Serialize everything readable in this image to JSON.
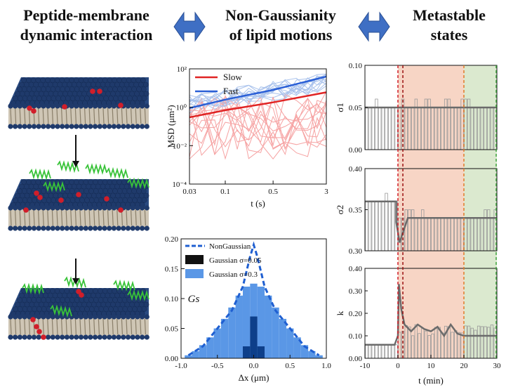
{
  "headers": {
    "col1": [
      "Peptide-membrane",
      "dynamic interaction"
    ],
    "col2": [
      "Non-Gaussianity",
      "of lipid motions"
    ],
    "col3": [
      "Metastable",
      "states"
    ]
  },
  "colors": {
    "arrow_blue": "#3f6fc4",
    "lipid_head": "#1f3a6b",
    "lipid_red": "#d11e2a",
    "peptide_green": "#39c339",
    "slow": "#e02424",
    "fast": "#2a5fd6",
    "slow_light": "#f6a3a3",
    "fast_light": "#a9c2ec",
    "gauss_dark": "#0d3f8a",
    "gauss_light": "#5a97e6",
    "nongauss": "#1f5fd1",
    "region_red": "#f7d5c5",
    "region_green": "#dbe9cf"
  },
  "msd_chart": {
    "type": "line",
    "ylabel": "MSD (μm²)",
    "xlabel": "t (s)",
    "x_ticks": [
      "0.03",
      "0.1",
      "0.5",
      "3"
    ],
    "y_ticks": [
      "10²",
      "10⁰",
      "10⁻²",
      "10⁻⁴"
    ],
    "legend": [
      {
        "name": "Slow"
      },
      {
        "name": "Fast"
      }
    ]
  },
  "gs_chart": {
    "type": "bar",
    "ylabel": "Gs",
    "xlabel": "Δx (μm)",
    "x_ticks": [
      "-1.0",
      "-0.5",
      "0.0",
      "0.5",
      "1.0"
    ],
    "y_ticks": [
      "0.00",
      "0.05",
      "0.10",
      "0.15",
      "0.20"
    ],
    "legend": [
      {
        "name": "NonGaussian"
      },
      {
        "name": "Gaussian σ=0.05"
      },
      {
        "name": "Gaussian σ=0.3"
      }
    ]
  },
  "state_chart": {
    "type": "line",
    "xlabel": "t (min)",
    "x_ticks": [
      "-10",
      "0",
      "10",
      "20",
      "30"
    ],
    "panels": [
      {
        "ylabel": "σ1",
        "ticks": [
          "0.10",
          "0.05",
          "0.00"
        ]
      },
      {
        "ylabel": "σ2",
        "ticks": [
          "0.40",
          "0.35",
          "0.30"
        ]
      },
      {
        "ylabel": "k",
        "ticks": [
          "0.40",
          "0.30",
          "0.20",
          "0.10",
          "0.00"
        ]
      }
    ]
  },
  "chart_data": [
    {
      "type": "line",
      "title": "",
      "xlabel": "t (s)",
      "ylabel": "MSD (μm²)",
      "xscale": "log",
      "yscale": "log",
      "xlim": [
        0.03,
        3
      ],
      "ylim": [
        0.0001,
        100
      ],
      "series": [
        {
          "name": "Slow",
          "x": [
            0.03,
            0.1,
            0.5,
            3
          ],
          "y": [
            0.3,
            0.7,
            1.8,
            6
          ]
        },
        {
          "name": "Fast",
          "x": [
            0.03,
            0.1,
            0.5,
            3
          ],
          "y": [
            0.9,
            2.5,
            8,
            40
          ]
        }
      ]
    },
    {
      "type": "bar",
      "title": "",
      "xlabel": "Δx (μm)",
      "ylabel": "Gs",
      "xlim": [
        -1.0,
        1.0
      ],
      "ylim": [
        0,
        0.2
      ],
      "series": [
        {
          "name": "Gaussian σ=0.3",
          "x": [
            -0.9,
            -0.8,
            -0.7,
            -0.6,
            -0.5,
            -0.4,
            -0.3,
            -0.2,
            -0.1,
            0.0,
            0.1,
            0.2,
            0.3,
            0.4,
            0.5,
            0.6,
            0.7,
            0.8,
            0.9
          ],
          "values": [
            0.005,
            0.012,
            0.022,
            0.035,
            0.05,
            0.066,
            0.085,
            0.105,
            0.12,
            0.125,
            0.12,
            0.105,
            0.085,
            0.066,
            0.05,
            0.035,
            0.022,
            0.012,
            0.005
          ]
        },
        {
          "name": "Gaussian σ=0.05",
          "x": [
            -0.1,
            0.0,
            0.1
          ],
          "values": [
            0.02,
            0.07,
            0.02
          ]
        },
        {
          "name": "NonGaussian",
          "x": [
            -0.9,
            -0.7,
            -0.5,
            -0.3,
            -0.15,
            -0.05,
            0.0,
            0.05,
            0.15,
            0.3,
            0.5,
            0.7,
            0.9
          ],
          "values": [
            0.005,
            0.02,
            0.05,
            0.08,
            0.12,
            0.17,
            0.19,
            0.17,
            0.12,
            0.08,
            0.05,
            0.02,
            0.005
          ]
        }
      ]
    },
    {
      "type": "line",
      "title": "",
      "xlabel": "t (min)",
      "ylabel": "σ1",
      "xlim": [
        -10,
        30
      ],
      "ylim": [
        0,
        0.1
      ],
      "series": [
        {
          "name": "",
          "x": [
            -10,
            30
          ],
          "y": [
            0.05,
            0.05
          ]
        }
      ]
    },
    {
      "type": "line",
      "title": "",
      "xlabel": "t (min)",
      "ylabel": "σ2",
      "xlim": [
        -10,
        30
      ],
      "ylim": [
        0.3,
        0.4
      ],
      "series": [
        {
          "name": "",
          "x": [
            -10,
            -0.5,
            -0.5,
            0.5,
            3,
            30
          ],
          "y": [
            0.36,
            0.36,
            0.335,
            0.31,
            0.34,
            0.34
          ]
        }
      ]
    },
    {
      "type": "line",
      "title": "",
      "xlabel": "t (min)",
      "ylabel": "k",
      "xlim": [
        -10,
        30
      ],
      "ylim": [
        0,
        0.4
      ],
      "series": [
        {
          "name": "",
          "x": [
            -10,
            -1,
            0,
            0.3,
            1,
            2,
            4,
            6,
            8,
            10,
            12,
            14,
            16,
            18,
            20,
            30
          ],
          "y": [
            0.06,
            0.06,
            0.1,
            0.33,
            0.22,
            0.15,
            0.12,
            0.15,
            0.13,
            0.12,
            0.14,
            0.1,
            0.15,
            0.11,
            0.1,
            0.1
          ]
        }
      ]
    }
  ]
}
